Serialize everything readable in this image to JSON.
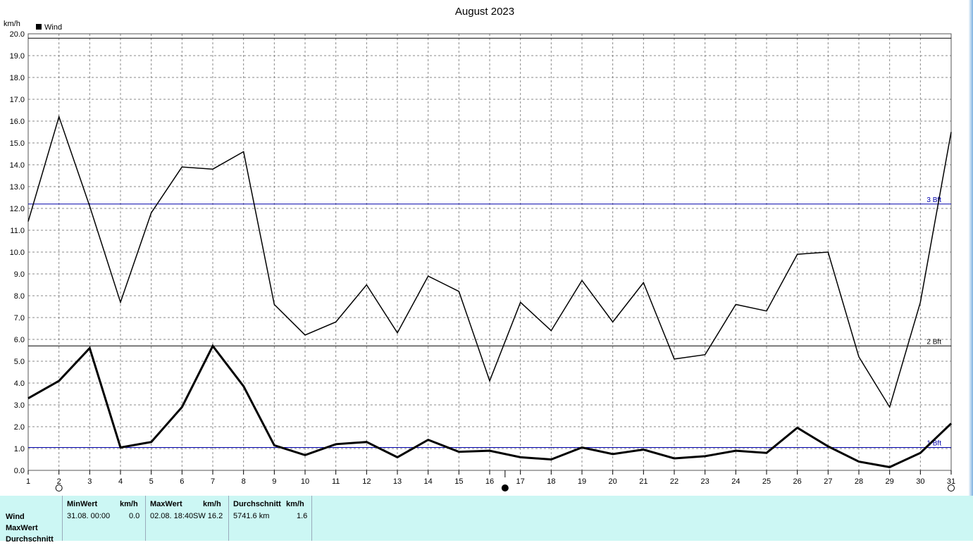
{
  "chart_data": {
    "type": "line",
    "title": "August 2023",
    "ylabel": "km/h",
    "ylim": [
      0,
      20
    ],
    "yticks": [
      "0.0",
      "1.0",
      "2.0",
      "3.0",
      "4.0",
      "5.0",
      "6.0",
      "7.0",
      "8.0",
      "9.0",
      "10.0",
      "11.0",
      "12.0",
      "13.0",
      "14.0",
      "15.0",
      "16.0",
      "17.0",
      "18.0",
      "19.0",
      "20.0"
    ],
    "x": [
      1,
      2,
      3,
      4,
      5,
      6,
      7,
      8,
      9,
      10,
      11,
      12,
      13,
      14,
      15,
      16,
      17,
      18,
      19,
      20,
      21,
      22,
      23,
      24,
      25,
      26,
      27,
      28,
      29,
      30,
      31
    ],
    "legend": [
      {
        "name": "Wind",
        "color": "#000000"
      }
    ],
    "legend_position": "top-left",
    "grid": true,
    "series": [
      {
        "values": [
          11.4,
          16.2,
          12.1,
          7.7,
          11.8,
          13.9,
          13.8,
          14.6,
          7.6,
          6.2,
          6.8,
          8.5,
          6.3,
          8.9,
          8.2,
          4.1,
          7.7,
          6.4,
          8.7,
          6.8,
          8.6,
          5.1,
          5.3,
          7.6,
          7.3,
          9.9,
          10.0,
          5.2,
          2.9,
          7.7,
          15.5
        ],
        "width": 1.5
      },
      {
        "values": [
          3.3,
          4.1,
          5.6,
          1.05,
          1.3,
          2.9,
          5.7,
          3.85,
          1.15,
          0.7,
          1.2,
          1.3,
          0.6,
          1.4,
          0.85,
          0.9,
          0.6,
          0.5,
          1.05,
          0.75,
          0.95,
          0.55,
          0.65,
          0.9,
          0.8,
          1.95,
          1.1,
          0.4,
          0.15,
          0.8,
          2.15
        ],
        "width": 3
      }
    ],
    "reference_lines": [
      {
        "value": 19.8,
        "color": "#000000",
        "label": ""
      },
      {
        "value": 12.2,
        "color": "#0000aa",
        "label": "3 Bft"
      },
      {
        "value": 5.7,
        "color": "#000000",
        "label": "2 Bft"
      },
      {
        "value": 1.05,
        "color": "#0000aa",
        "label": "1 Bft"
      }
    ],
    "moon_phases": [
      {
        "day": 2,
        "phase": "full"
      },
      {
        "day": 16.5,
        "phase": "new"
      },
      {
        "day": 31,
        "phase": "full"
      }
    ]
  },
  "stats": {
    "row_labels": [
      "Wind",
      "MaxWert",
      "Durchschnitt"
    ],
    "min": {
      "header": "MinWert",
      "unit": "km/h",
      "date": "31.08.  00:00",
      "value": "0.0"
    },
    "max": {
      "header": "MaxWert",
      "unit": "km/h",
      "date": "02.08.  18:40",
      "dir_value": "SW 16.2"
    },
    "avg": {
      "header": "Durchschnitt",
      "unit": "km/h",
      "distance": "5741.6 km",
      "value": "1.6"
    }
  }
}
